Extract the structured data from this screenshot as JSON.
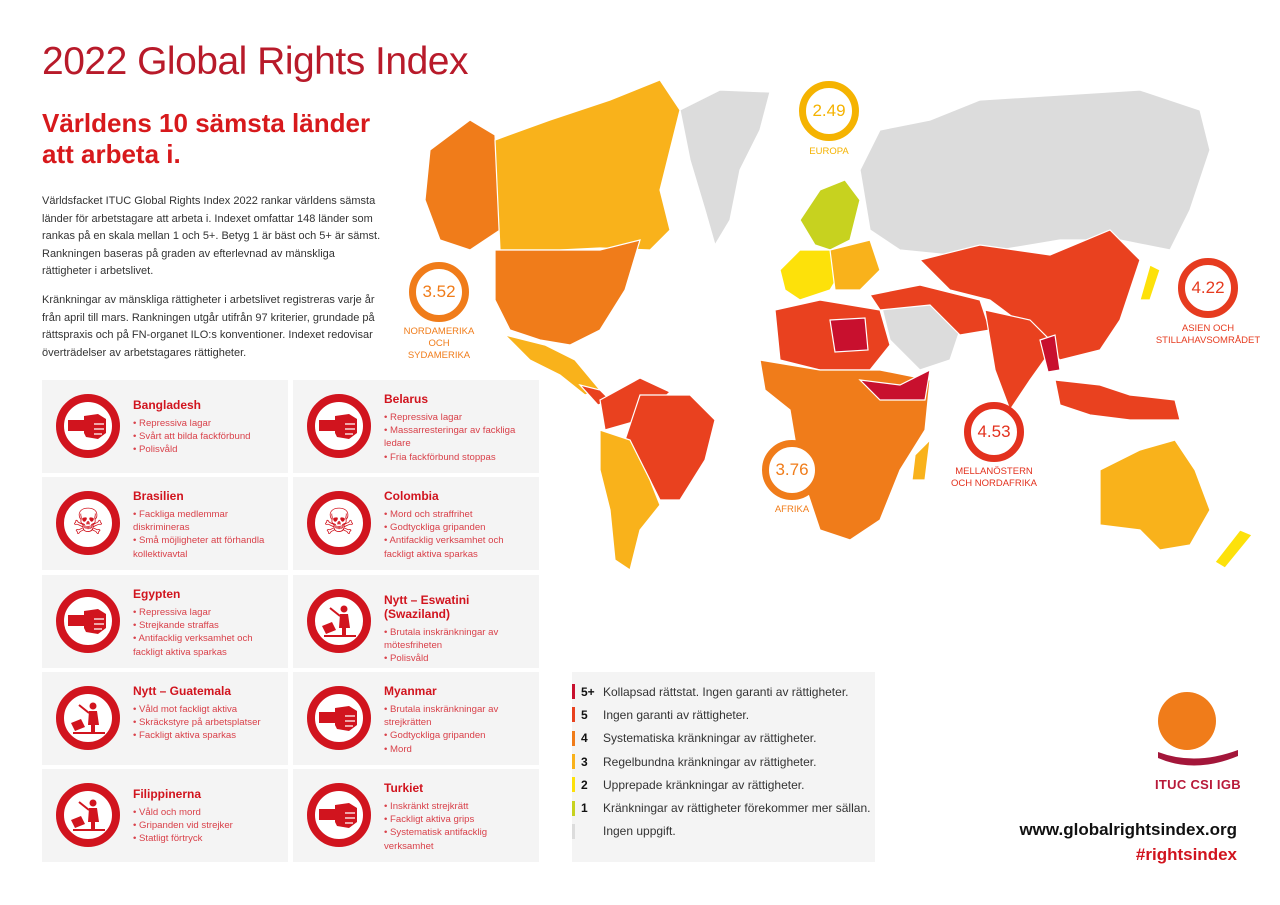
{
  "title": "2022 Global Rights Index",
  "subtitle": "Världens 10 sämsta länder att arbeta i.",
  "intro": [
    "Världsfacket ITUC Global Rights Index 2022 rankar världens sämsta länder för arbetstagare att arbeta i. Indexet omfattar 148 länder som rankas på en skala mellan 1 och 5+. Betyg 1 är bäst och 5+ är sämst. Rankningen baseras på graden av efterlevnad av mänskliga rättigheter i arbetslivet.",
    "Kränkningar av mänskliga rättigheter i arbetslivet registreras varje år från april till mars. Rankningen utgår utifrån 97 kriterier, grundade på rättspraxis och på FN-organet ILO:s konventioner. Indexet redovisar överträdelser av arbetstagares rättigheter."
  ],
  "countries": [
    {
      "name": "Bangladesh",
      "icon": "fist-icon",
      "items": [
        "Repressiva lagar",
        "Svårt att bilda fackförbund",
        "Polisvåld"
      ]
    },
    {
      "name": "Belarus",
      "icon": "fist-icon",
      "items": [
        "Repressiva lagar",
        "Massarresteringar av fackliga ledare",
        "Fria fackförbund stoppas"
      ]
    },
    {
      "name": "Brasilien",
      "icon": "skull-icon",
      "items": [
        "Fackliga medlemmar diskrimineras",
        "Små möjligheter att förhandla kollektivavtal"
      ]
    },
    {
      "name": "Colombia",
      "icon": "skull-icon",
      "items": [
        "Mord och straffrihet",
        "Godtyckliga gripanden",
        "Antifacklig verksamhet och fackligt aktiva sparkas"
      ]
    },
    {
      "name": "Egypten",
      "icon": "fist-icon",
      "items": [
        "Repressiva lagar",
        "Strejkande straffas",
        "Antifacklig verksamhet och fackligt aktiva sparkas"
      ]
    },
    {
      "name": "Nytt – Eswatini (Swaziland)",
      "icon": "police-violence-icon",
      "items": [
        "Brutala inskränkningar av mötesfriheten",
        "Polisvåld"
      ]
    },
    {
      "name": "Nytt – Guatemala",
      "icon": "police-violence-icon",
      "items": [
        "Våld mot fackligt aktiva",
        "Skräckstyre på arbetsplatser",
        "Fackligt aktiva sparkas"
      ]
    },
    {
      "name": "Myanmar",
      "icon": "fist-icon",
      "items": [
        "Brutala inskränkningar av strejkrätten",
        "Godtyckliga gripanden",
        "Mord"
      ]
    },
    {
      "name": "Filippinerna",
      "icon": "police-violence-icon",
      "items": [
        "Våld och mord",
        "Gripanden vid strejker",
        "Statligt förtryck"
      ]
    },
    {
      "name": "Turkiet",
      "icon": "fist-icon",
      "items": [
        "Inskränkt strejkrätt",
        "Fackligt aktiva grips",
        "Systematisk antifacklig verksamhet"
      ]
    }
  ],
  "regions": [
    {
      "score": "2.49",
      "label": "Europa",
      "color": "#f5b301"
    },
    {
      "score": "3.52",
      "label": "Nordamerika och Sydamerika",
      "color": "#f07c1a"
    },
    {
      "score": "4.22",
      "label": "Asien och Stillahavsområdet",
      "color": "#e63b1f"
    },
    {
      "score": "4.53",
      "label": "Mellanöstern och Nordafrika",
      "color": "#e3311e"
    },
    {
      "score": "3.76",
      "label": "Afrika",
      "color": "#f07c1a"
    }
  ],
  "legend": [
    {
      "rating": "5+",
      "text": "Kollapsad rättstat. Ingen garanti av rättigheter.",
      "color": "#c8102e"
    },
    {
      "rating": "5",
      "text": "Ingen garanti av rättigheter.",
      "color": "#e9411f"
    },
    {
      "rating": "4",
      "text": "Systematiska kränkningar av rättigheter.",
      "color": "#f07c1a"
    },
    {
      "rating": "3",
      "text": "Regelbundna kränkningar av rättigheter.",
      "color": "#f9b21b"
    },
    {
      "rating": "2",
      "text": "Upprepade kränkningar av rättigheter.",
      "color": "#fde10a"
    },
    {
      "rating": "1",
      "text": "Kränkningar av rättigheter förekommer mer sällan.",
      "color": "#c7d21f"
    },
    {
      "rating": "",
      "text": "Ingen uppgift.",
      "color": "#dcdcdc"
    }
  ],
  "logo": {
    "text": "ITUC CSI IGB"
  },
  "footer": {
    "url": "www.globalrightsindex.org",
    "hashtag": "#rightsindex"
  }
}
